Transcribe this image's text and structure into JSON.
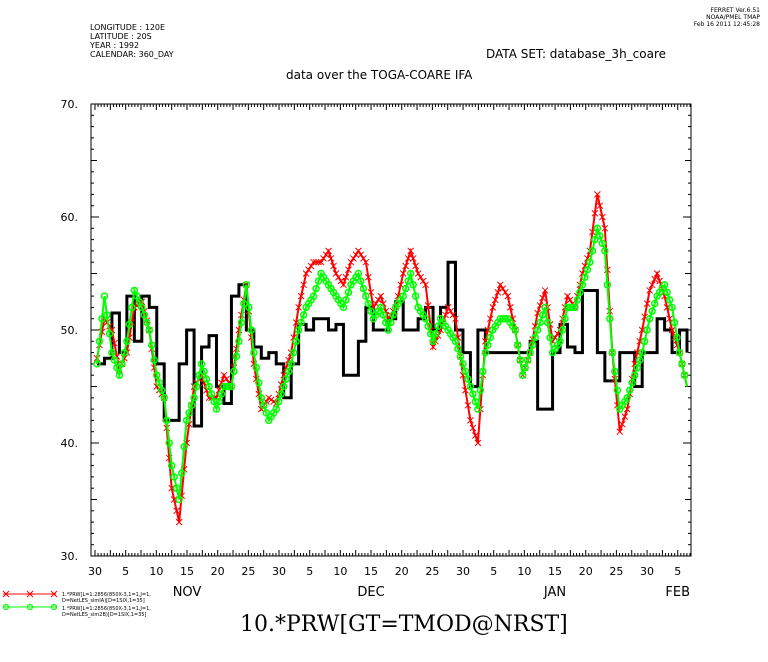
{
  "header": {
    "ferret_line1": "FERRET  Ver.6.51",
    "ferret_line2": "NOAA/PMEL TMAP",
    "ferret_line3": "Feb 16 2011 12:45:28",
    "meta1": "LONGITUDE : 120E",
    "meta2": "LATITUDE : 20S",
    "meta3": "YEAR : 1992",
    "meta4": "CALENDAR: 360_DAY",
    "dataset": "DATA SET: database_3h_coare",
    "subtitle": "data over the TOGA-COARE IFA"
  },
  "legend": {
    "entry1_line1": "1.*PRW[L=1:2856(850X-3,1=1,J=1,",
    "entry1_line2": "D=NetLES_simIA)[D=1SIX,1=35]",
    "entry2_line1": "1.*PRW[L=1:2856(850X-3,1=1,J=1,",
    "entry2_line2": "D=NetLES_sim2B)[D=1SIX,1=35]"
  },
  "bottom_title": "10.*PRW[GT=TMOD@NRST]",
  "chart_data": {
    "type": "line",
    "ylim": [
      30,
      70
    ],
    "yticks": [
      "30.",
      "40.",
      "50.",
      "60.",
      "70."
    ],
    "xtick_labels": [
      "30",
      "5",
      "10",
      "15",
      "20",
      "25",
      "30",
      "5",
      "10",
      "15",
      "20",
      "25",
      "30",
      "5",
      "10",
      "15",
      "20",
      "25",
      "30",
      "5"
    ],
    "month_labels": [
      "NOV",
      "DEC",
      "JAN",
      "FEB"
    ],
    "series": [
      {
        "color": "#000000",
        "style": "step",
        "values": [
          47,
          47.5,
          51.5,
          48,
          53,
          49,
          53,
          52,
          47,
          42,
          42,
          47,
          50,
          41.5,
          48.5,
          49.5,
          45,
          43.5,
          53,
          54,
          50,
          48.5,
          47.5,
          48,
          47,
          44,
          47,
          50.5,
          50,
          51,
          51,
          50,
          50.5,
          46,
          46,
          49,
          52,
          50,
          50,
          51,
          52.5,
          50,
          50,
          51,
          52,
          50,
          52,
          56,
          50,
          48,
          45,
          50,
          48,
          48,
          48,
          48,
          48,
          48,
          49,
          43,
          43,
          48,
          50.5,
          48.5,
          48,
          53.5,
          53.5,
          48,
          45.5,
          45.5,
          48,
          48,
          45,
          48,
          48,
          51,
          50,
          48,
          50,
          48
        ]
      },
      {
        "color": "#ff0000",
        "style": "markers-x",
        "values": [
          47.5,
          51,
          50,
          46.5,
          48,
          52,
          52.5,
          50,
          45,
          44,
          36,
          33,
          40,
          45,
          46,
          44,
          44,
          46,
          45,
          50,
          54,
          47,
          43,
          44,
          43.5,
          46,
          48,
          52,
          55,
          56,
          56,
          57,
          55,
          54,
          56,
          57,
          56,
          52,
          53,
          51,
          52,
          55,
          57,
          55,
          54,
          48.5,
          50,
          52,
          51,
          46,
          42,
          40,
          49,
          52,
          54,
          53,
          50,
          46,
          48,
          51.5,
          53.5,
          49,
          50,
          53,
          52,
          55,
          57,
          62,
          59,
          48,
          41,
          43,
          47,
          50,
          53.5,
          55,
          53,
          50,
          48,
          45
        ]
      },
      {
        "color": "#00ff00",
        "style": "markers-o",
        "values": [
          47,
          53,
          48,
          46,
          49,
          53.5,
          52,
          50,
          46,
          44,
          38,
          35,
          42,
          44,
          47,
          45,
          43,
          45,
          45,
          49,
          54,
          48,
          44,
          42,
          43,
          45,
          47,
          50,
          52,
          53,
          55,
          54,
          53,
          52,
          54,
          55,
          53,
          51,
          52,
          50,
          52,
          53,
          55,
          52,
          51,
          49,
          51,
          50,
          49,
          47,
          45,
          43,
          48,
          50,
          51,
          51,
          50,
          46,
          48,
          50,
          52,
          48,
          49,
          52,
          52,
          54,
          56,
          59,
          57,
          48,
          43,
          44,
          46,
          48,
          51,
          53,
          54,
          52,
          48,
          45
        ]
      }
    ]
  }
}
